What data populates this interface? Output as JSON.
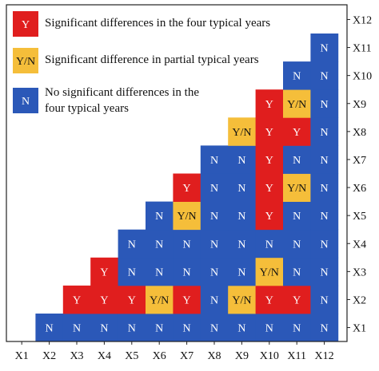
{
  "chart_data": {
    "type": "heatmap",
    "x_categories": [
      "X1",
      "X2",
      "X3",
      "X4",
      "X5",
      "X6",
      "X7",
      "X8",
      "X9",
      "X10",
      "X11",
      "X12"
    ],
    "y_categories": [
      "X1",
      "X2",
      "X3",
      "X4",
      "X5",
      "X6",
      "X7",
      "X8",
      "X9",
      "X10",
      "X11",
      "X12"
    ],
    "legend": [
      {
        "code": "Y",
        "label": "Significant differences in the four typical years",
        "color": "#e01e1e"
      },
      {
        "code": "Y/N",
        "label": "Significant difference in partial typical years",
        "color": "#f5be3a"
      },
      {
        "code": "N",
        "label_line1": "No significant differences in the",
        "label_line2": "four typical years",
        "color": "#2b58b8"
      }
    ],
    "cells": {
      "X1": [
        "N",
        "N",
        "N",
        "N",
        "N",
        "N",
        "N",
        "N",
        "N",
        "N",
        "N"
      ],
      "X2": [
        "Y",
        "Y",
        "Y",
        "Y/N",
        "Y",
        "N",
        "Y/N",
        "Y",
        "Y",
        "N"
      ],
      "X3": [
        "Y",
        "N",
        "N",
        "N",
        "N",
        "N",
        "Y/N",
        "N",
        "N"
      ],
      "X4": [
        "N",
        "N",
        "N",
        "N",
        "N",
        "N",
        "N",
        "N"
      ],
      "X5": [
        "N",
        "Y/N",
        "N",
        "N",
        "Y",
        "N",
        "N"
      ],
      "X6": [
        "Y",
        "N",
        "N",
        "Y",
        "Y/N",
        "N"
      ],
      "X7": [
        "N",
        "N",
        "Y",
        "N",
        "N"
      ],
      "X8": [
        "Y/N",
        "Y",
        "Y",
        "N"
      ],
      "X9": [
        "Y",
        "Y/N",
        "N"
      ],
      "X10": [
        "N",
        "N"
      ],
      "X11": [
        "N"
      ],
      "X12": []
    },
    "colors": {
      "Y": "#e01e1e",
      "Y/N": "#f5be3a",
      "N": "#2b58b8"
    }
  }
}
